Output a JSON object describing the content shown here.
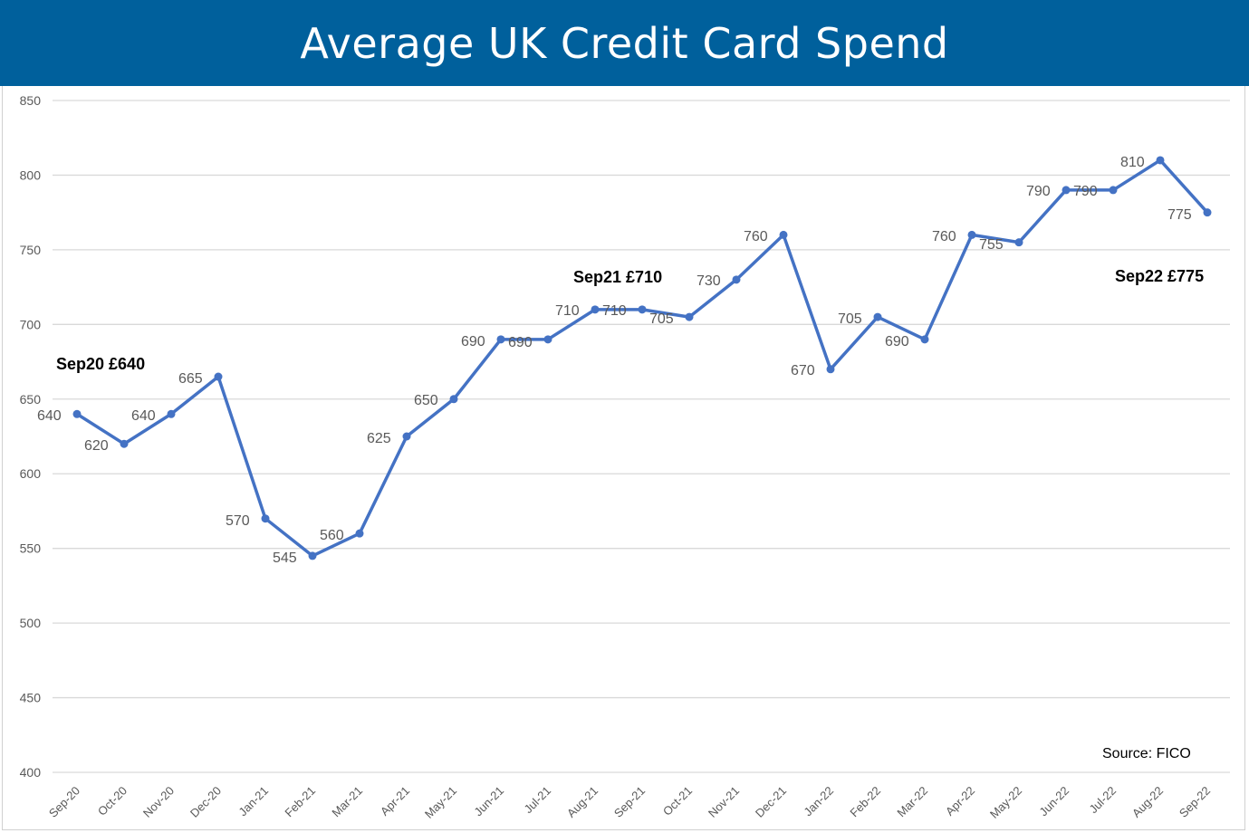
{
  "header": {
    "title": "Average UK Credit Card Spend",
    "background": "#00609c"
  },
  "source": "Source: FICO",
  "annotations": [
    {
      "label": "Sep20 £640",
      "category": "Sep-20"
    },
    {
      "label": "Sep21 £710",
      "category": "Sep-21"
    },
    {
      "label": "Sep22 £775",
      "category": "Sep-22"
    }
  ],
  "colors": {
    "line": "#4472c4",
    "grid": "#d9d9d9",
    "tick_text": "#595959"
  },
  "chart_data": {
    "type": "line",
    "title": "Average UK Credit Card Spend",
    "xlabel": "",
    "ylabel": "",
    "ylim": [
      400,
      850
    ],
    "yticks": [
      400,
      450,
      500,
      550,
      600,
      650,
      700,
      750,
      800,
      850
    ],
    "grid": true,
    "legend": "none",
    "categories": [
      "Sep-20",
      "Oct-20",
      "Nov-20",
      "Dec-20",
      "Jan-21",
      "Feb-21",
      "Mar-21",
      "Apr-21",
      "May-21",
      "Jun-21",
      "Jul-21",
      "Aug-21",
      "Sep-21",
      "Oct-21",
      "Nov-21",
      "Dec-21",
      "Jan-22",
      "Feb-22",
      "Mar-22",
      "Apr-22",
      "May-22",
      "Jun-22",
      "Jul-22",
      "Aug-22",
      "Sep-22"
    ],
    "series": [
      {
        "name": "Average UK Credit Card Spend (£)",
        "values": [
          640,
          620,
          640,
          665,
          570,
          545,
          560,
          625,
          650,
          690,
          690,
          710,
          710,
          705,
          730,
          760,
          670,
          705,
          690,
          760,
          755,
          790,
          790,
          810,
          775
        ]
      }
    ],
    "annotations": [
      "Sep20 £640",
      "Sep21 £710",
      "Sep22 £775"
    ],
    "source": "Source: FICO"
  }
}
